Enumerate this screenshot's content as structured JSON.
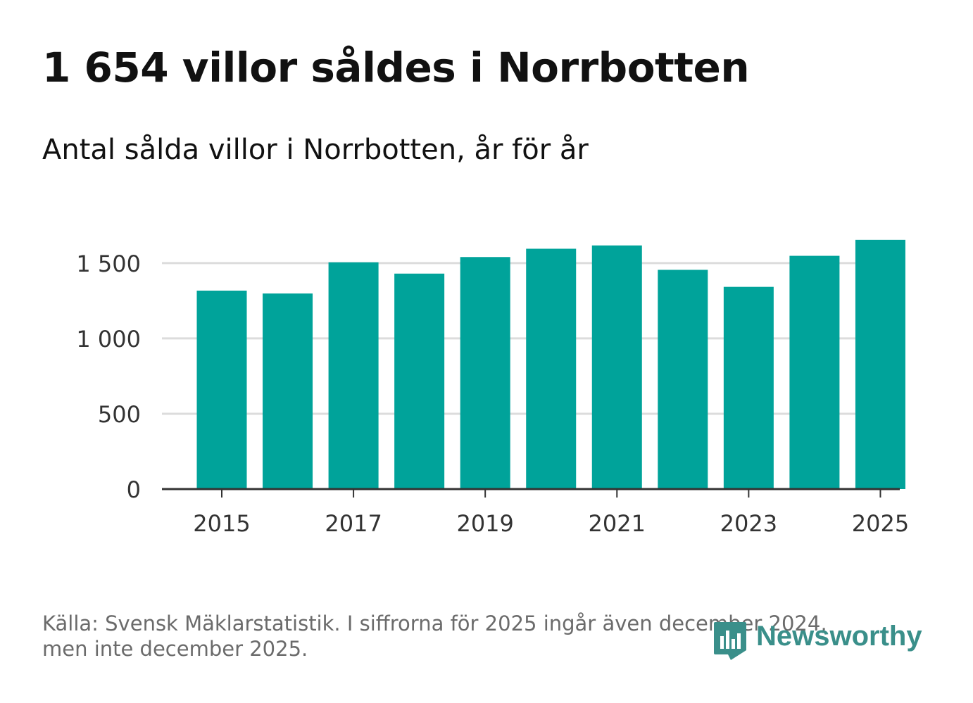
{
  "title": "1 654 villor såldes i Norrbotten",
  "subtitle": "Antal sålda villor i Norrbotten, år för år",
  "footer": {
    "source_line1": "Källa: Svensk Mäklarstatistik. I siffrorna för 2025 ingår även december 2024,",
    "source_line2": "men inte december 2025."
  },
  "brand": {
    "name": "Newsworthy",
    "icon": "newsworthy-logo-icon",
    "color": "#3a8f8a"
  },
  "colors": {
    "bar": "#00a39a",
    "grid": "#dcdcdc",
    "axis": "#333333",
    "tick_text": "#333333"
  },
  "chart_data": {
    "type": "bar",
    "title": "Antal sålda villor i Norrbotten, år för år",
    "xlabel": "",
    "ylabel": "",
    "categories": [
      "2015",
      "2016",
      "2017",
      "2018",
      "2019",
      "2020",
      "2021",
      "2022",
      "2023",
      "2024",
      "2025"
    ],
    "values": [
      1317,
      1298,
      1505,
      1430,
      1540,
      1595,
      1617,
      1455,
      1342,
      1548,
      1654
    ],
    "ylim": [
      0,
      1700
    ],
    "yticks": [
      0,
      500,
      1000,
      1500
    ],
    "ytick_labels": [
      "0",
      "500",
      "1 000",
      "1 500"
    ],
    "xtick_labels": [
      "2015",
      "2017",
      "2019",
      "2021",
      "2023",
      "2025"
    ],
    "grid": true
  }
}
